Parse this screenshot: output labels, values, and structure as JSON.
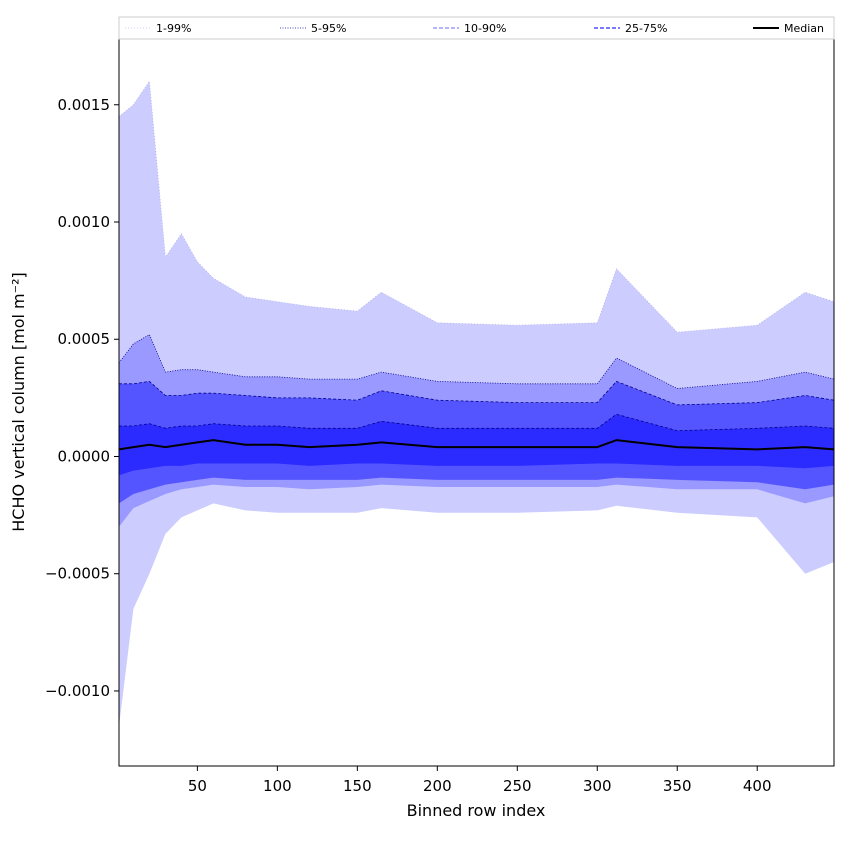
{
  "chart_data": {
    "type": "area",
    "xlabel": "Binned row index",
    "ylabel": "HCHO vertical column [mol m⁻²]",
    "xlim": [
      1,
      448
    ],
    "ylim": [
      -0.00132,
      0.00187
    ],
    "xticks": [
      50,
      100,
      150,
      200,
      250,
      300,
      350,
      400
    ],
    "yticks": [
      -0.001,
      -0.0005,
      0.0,
      0.0005,
      0.001,
      0.0015
    ],
    "ytick_labels": [
      "−0.0010",
      "−0.0005",
      "0.0000",
      "0.0005",
      "0.0010",
      "0.0015"
    ],
    "legend_position": "top",
    "legend": [
      {
        "label": "1-99%",
        "style": "dotted",
        "color": "#ccccff"
      },
      {
        "label": "5-95%",
        "style": "dotted",
        "color": "#0000aa"
      },
      {
        "label": "10-90%",
        "style": "dashed",
        "color": "#6a6aff"
      },
      {
        "label": "25-75%",
        "style": "dashed",
        "color": "#2a2aff"
      },
      {
        "label": "Median",
        "style": "solid",
        "color": "#000000"
      }
    ],
    "x": [
      1,
      10,
      20,
      30,
      40,
      50,
      60,
      80,
      100,
      120,
      150,
      165,
      200,
      250,
      300,
      312,
      350,
      400,
      430,
      448
    ],
    "bands": [
      {
        "name": "1-99%",
        "color": "#ccccff",
        "lower": [
          -0.00115,
          -0.00065,
          -0.0005,
          -0.00033,
          -0.00026,
          -0.00023,
          -0.0002,
          -0.00023,
          -0.00024,
          -0.00024,
          -0.00024,
          -0.00022,
          -0.00024,
          -0.00024,
          -0.00023,
          -0.00021,
          -0.00024,
          -0.00026,
          -0.0005,
          -0.00045
        ],
        "upper": [
          0.00145,
          0.0015,
          0.0016,
          0.00085,
          0.00095,
          0.00083,
          0.00076,
          0.00068,
          0.00066,
          0.00064,
          0.00062,
          0.0007,
          0.00057,
          0.00056,
          0.00057,
          0.0008,
          0.00053,
          0.00056,
          0.0007,
          0.00066
        ]
      },
      {
        "name": "5-95%",
        "color": "#9999ff",
        "lower": [
          -0.0003,
          -0.00022,
          -0.00019,
          -0.00016,
          -0.00014,
          -0.00013,
          -0.00012,
          -0.00013,
          -0.00013,
          -0.00014,
          -0.00013,
          -0.00012,
          -0.00013,
          -0.00013,
          -0.00013,
          -0.00012,
          -0.00014,
          -0.00014,
          -0.0002,
          -0.00017
        ],
        "upper": [
          0.0004,
          0.00048,
          0.00052,
          0.00036,
          0.00037,
          0.00037,
          0.00036,
          0.00034,
          0.00034,
          0.00033,
          0.00033,
          0.00036,
          0.00032,
          0.00031,
          0.00031,
          0.00042,
          0.00029,
          0.00032,
          0.00036,
          0.00033
        ]
      },
      {
        "name": "10-90%",
        "color": "#5555ff",
        "lower": [
          -0.0002,
          -0.00016,
          -0.00014,
          -0.00012,
          -0.00011,
          -0.0001,
          -9e-05,
          -0.0001,
          -0.0001,
          -0.0001,
          -0.0001,
          -9e-05,
          -0.0001,
          -0.0001,
          -0.0001,
          -9e-05,
          -0.0001,
          -0.00011,
          -0.00014,
          -0.00012
        ],
        "upper": [
          0.00031,
          0.00031,
          0.00032,
          0.00026,
          0.00026,
          0.00027,
          0.00027,
          0.00026,
          0.00025,
          0.00025,
          0.00024,
          0.00028,
          0.00024,
          0.00023,
          0.00023,
          0.00032,
          0.00022,
          0.00023,
          0.00026,
          0.00024
        ]
      },
      {
        "name": "25-75%",
        "color": "#2b2bff",
        "lower": [
          -8e-05,
          -6e-05,
          -5e-05,
          -4e-05,
          -4e-05,
          -3e-05,
          -3e-05,
          -3e-05,
          -3e-05,
          -4e-05,
          -3e-05,
          -3e-05,
          -4e-05,
          -4e-05,
          -3e-05,
          -3e-05,
          -4e-05,
          -4e-05,
          -5e-05,
          -4e-05
        ],
        "upper": [
          0.00013,
          0.00013,
          0.00014,
          0.00012,
          0.00013,
          0.00013,
          0.00014,
          0.00013,
          0.00013,
          0.00012,
          0.00012,
          0.00015,
          0.00012,
          0.00012,
          0.00012,
          0.00018,
          0.00011,
          0.00012,
          0.00013,
          0.00012
        ]
      }
    ],
    "median": {
      "name": "Median",
      "color": "#000000",
      "values": [
        3e-05,
        4e-05,
        5e-05,
        4e-05,
        5e-05,
        6e-05,
        7e-05,
        5e-05,
        5e-05,
        4e-05,
        5e-05,
        6e-05,
        4e-05,
        4e-05,
        4e-05,
        7e-05,
        4e-05,
        3e-05,
        4e-05,
        3e-05
      ]
    }
  }
}
